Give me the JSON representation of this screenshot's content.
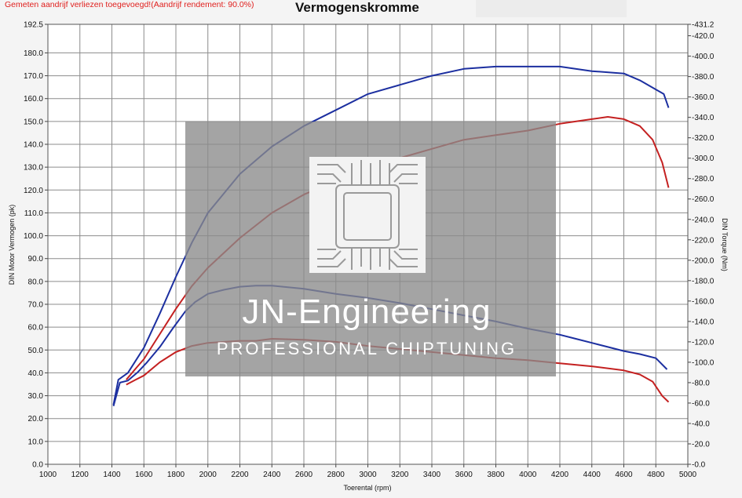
{
  "header": {
    "note": "Gemeten aandrijf verliezen toegevoegd!(Aandrijf rendement: 90.0%)",
    "title": "Vermogenskromme"
  },
  "watermark": {
    "brand": "JN-Engineering",
    "tagline": "PROFESSIONAL CHIPTUNING"
  },
  "chart_data": {
    "type": "line",
    "title": "Vermogenskromme",
    "xlabel": "Toerental (rpm)",
    "ylabel": "DIN Motor Vermogen (pk)",
    "y2label": "DIN Torque (Nm)",
    "xlim": [
      1000,
      5000
    ],
    "ylim": [
      0,
      192.5
    ],
    "y2lim": [
      0,
      431.2
    ],
    "x_ticks": [
      "1000",
      "1200",
      "1400",
      "1600",
      "1800",
      "2000",
      "2200",
      "2400",
      "2600",
      "2800",
      "3000",
      "3200",
      "3400",
      "3600",
      "3800",
      "4000",
      "4200",
      "4400",
      "4600",
      "4800",
      "5000"
    ],
    "y_ticks": [
      "0.0",
      "10.0",
      "20.0",
      "30.0",
      "40.0",
      "50.0",
      "60.0",
      "70.0",
      "80.0",
      "90.0",
      "100.0",
      "110.0",
      "120.0",
      "130.0",
      "140.0",
      "150.0",
      "160.0",
      "170.0",
      "180.0",
      "192.5"
    ],
    "y2_ticks": [
      "0.0",
      "20.0",
      "40.0",
      "60.0",
      "80.0",
      "100.0",
      "120.0",
      "140.0",
      "160.0",
      "180.0",
      "200.0",
      "220.0",
      "240.0",
      "260.0",
      "280.0",
      "300.0",
      "320.0",
      "340.0",
      "360.0",
      "380.0",
      "400.0",
      "420.0",
      "431.2"
    ],
    "colors": {
      "tuned": "#1c2fa0",
      "stock": "#c42121"
    },
    "series": [
      {
        "axis": "y2",
        "color": "#1c2fa0",
        "x": [
          1410,
          1450,
          1500,
          1560,
          1620,
          1700,
          1780,
          1860,
          1920,
          2000,
          2100,
          2200,
          2300,
          2400,
          2600,
          2800,
          3000,
          3200,
          3400,
          3600,
          3800,
          4000,
          4100,
          4200,
          4300,
          4400,
          4500,
          4600,
          4700,
          4800,
          4870
        ],
        "y": [
          57,
          80,
          82,
          90,
          100,
          115,
          133,
          150,
          159,
          167,
          171,
          174,
          175,
          175,
          172,
          167,
          163,
          158,
          152,
          146,
          140,
          133,
          130,
          127,
          123,
          119,
          115,
          111,
          108,
          104,
          93
        ]
      },
      {
        "axis": "y",
        "color": "#1c2fa0",
        "x": [
          1410,
          1440,
          1500,
          1600,
          1700,
          1800,
          1900,
          2000,
          2200,
          2400,
          2600,
          2800,
          3000,
          3200,
          3400,
          3600,
          3800,
          4000,
          4200,
          4400,
          4600,
          4700,
          4800,
          4850,
          4880
        ],
        "y": [
          26,
          37,
          40,
          51,
          66,
          82,
          97,
          110,
          127,
          139,
          148,
          155,
          162,
          166,
          170,
          173,
          174,
          174,
          174,
          172,
          171,
          168,
          164,
          162,
          156
        ]
      },
      {
        "axis": "y2",
        "color": "#c42121",
        "x": [
          1490,
          1550,
          1600,
          1700,
          1800,
          1900,
          2000,
          2100,
          2200,
          2300,
          2400,
          2600,
          2800,
          3000,
          3200,
          3400,
          3600,
          3800,
          4000,
          4200,
          4400,
          4600,
          4700,
          4780,
          4840,
          4880
        ],
        "y": [
          78,
          83,
          87,
          100,
          110,
          116,
          119,
          120,
          121,
          121,
          123,
          122,
          120,
          116,
          113,
          110,
          107,
          104,
          102,
          99,
          96,
          92,
          88,
          81,
          67,
          61
        ]
      },
      {
        "axis": "y",
        "color": "#c42121",
        "x": [
          1490,
          1550,
          1600,
          1700,
          1800,
          1900,
          2000,
          2200,
          2400,
          2600,
          2800,
          3000,
          3200,
          3400,
          3600,
          3800,
          4000,
          4200,
          4400,
          4500,
          4600,
          4700,
          4780,
          4840,
          4880
        ],
        "y": [
          37,
          42,
          46,
          57,
          68,
          78,
          86,
          99,
          110,
          118,
          124,
          130,
          134,
          138,
          142,
          144,
          146,
          149,
          151,
          152,
          151,
          148,
          142,
          132,
          121
        ]
      }
    ],
    "grid": true,
    "legend": "none"
  }
}
